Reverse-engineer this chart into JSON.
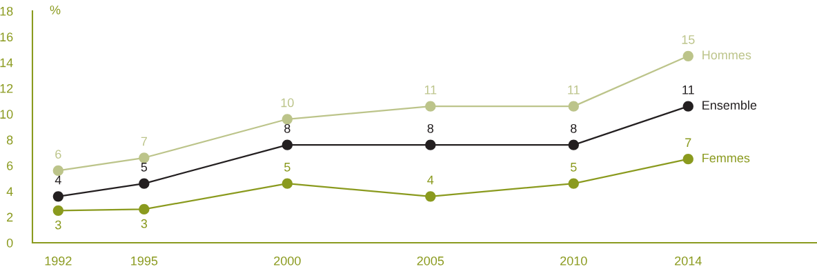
{
  "chart_data": {
    "type": "line",
    "ylabel": "%",
    "x": [
      1992,
      1995,
      2000,
      2005,
      2010,
      2014
    ],
    "series": [
      {
        "name": "Hommes",
        "color": "#bcc48a",
        "values": [
          5.6,
          6.6,
          9.6,
          10.6,
          10.6,
          14.5
        ],
        "value_labels": [
          "6",
          "7",
          "10",
          "11",
          "11",
          "15"
        ]
      },
      {
        "name": "Ensemble",
        "color": "#231f20",
        "values": [
          3.6,
          4.6,
          7.6,
          7.6,
          7.6,
          10.6
        ],
        "value_labels": [
          "4",
          "5",
          "8",
          "8",
          "8",
          "11"
        ]
      },
      {
        "name": "Femmes",
        "color": "#8a9a1e",
        "values": [
          2.5,
          2.6,
          4.6,
          3.6,
          4.6,
          6.5
        ],
        "value_labels": [
          "3",
          "3",
          "5",
          "4",
          "5",
          "7"
        ]
      }
    ],
    "xlim": [
      1991.1,
      2018.5
    ],
    "xticks": [
      1992,
      1995,
      2000,
      2005,
      2010,
      2014
    ],
    "ylim": [
      0,
      18
    ],
    "yticks": [
      0,
      2,
      4,
      6,
      8,
      10,
      12,
      14,
      16,
      18
    ],
    "grid": false,
    "legend": false,
    "marker": "circle",
    "line_style": "solid"
  }
}
